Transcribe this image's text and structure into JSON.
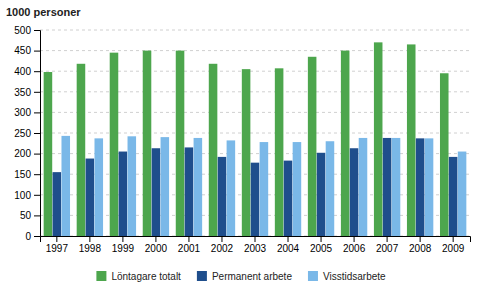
{
  "chart_data": {
    "type": "bar",
    "ylabel": "1000 personer",
    "categories": [
      "1997",
      "1998",
      "1999",
      "2000",
      "2001",
      "2002",
      "2003",
      "2004",
      "2005",
      "2006",
      "2007",
      "2008",
      "2009"
    ],
    "series": [
      {
        "name": "Löntagare totalt",
        "color": "#4da64d",
        "values": [
          398,
          418,
          445,
          450,
          450,
          418,
          405,
          407,
          435,
          450,
          470,
          465,
          395
        ]
      },
      {
        "name": "Permanent arbete",
        "color": "#1f4e8c",
        "values": [
          155,
          188,
          205,
          213,
          215,
          192,
          178,
          183,
          202,
          213,
          238,
          237,
          192
        ]
      },
      {
        "name": "Visstidsarbete",
        "color": "#7ab8e8",
        "values": [
          243,
          237,
          242,
          240,
          238,
          232,
          228,
          228,
          230,
          238,
          238,
          237,
          205
        ]
      }
    ],
    "ylim": [
      0,
      500
    ],
    "yticks": [
      0,
      50,
      100,
      150,
      200,
      250,
      300,
      350,
      400,
      450,
      500
    ],
    "grid": true,
    "legend": "bottom"
  }
}
